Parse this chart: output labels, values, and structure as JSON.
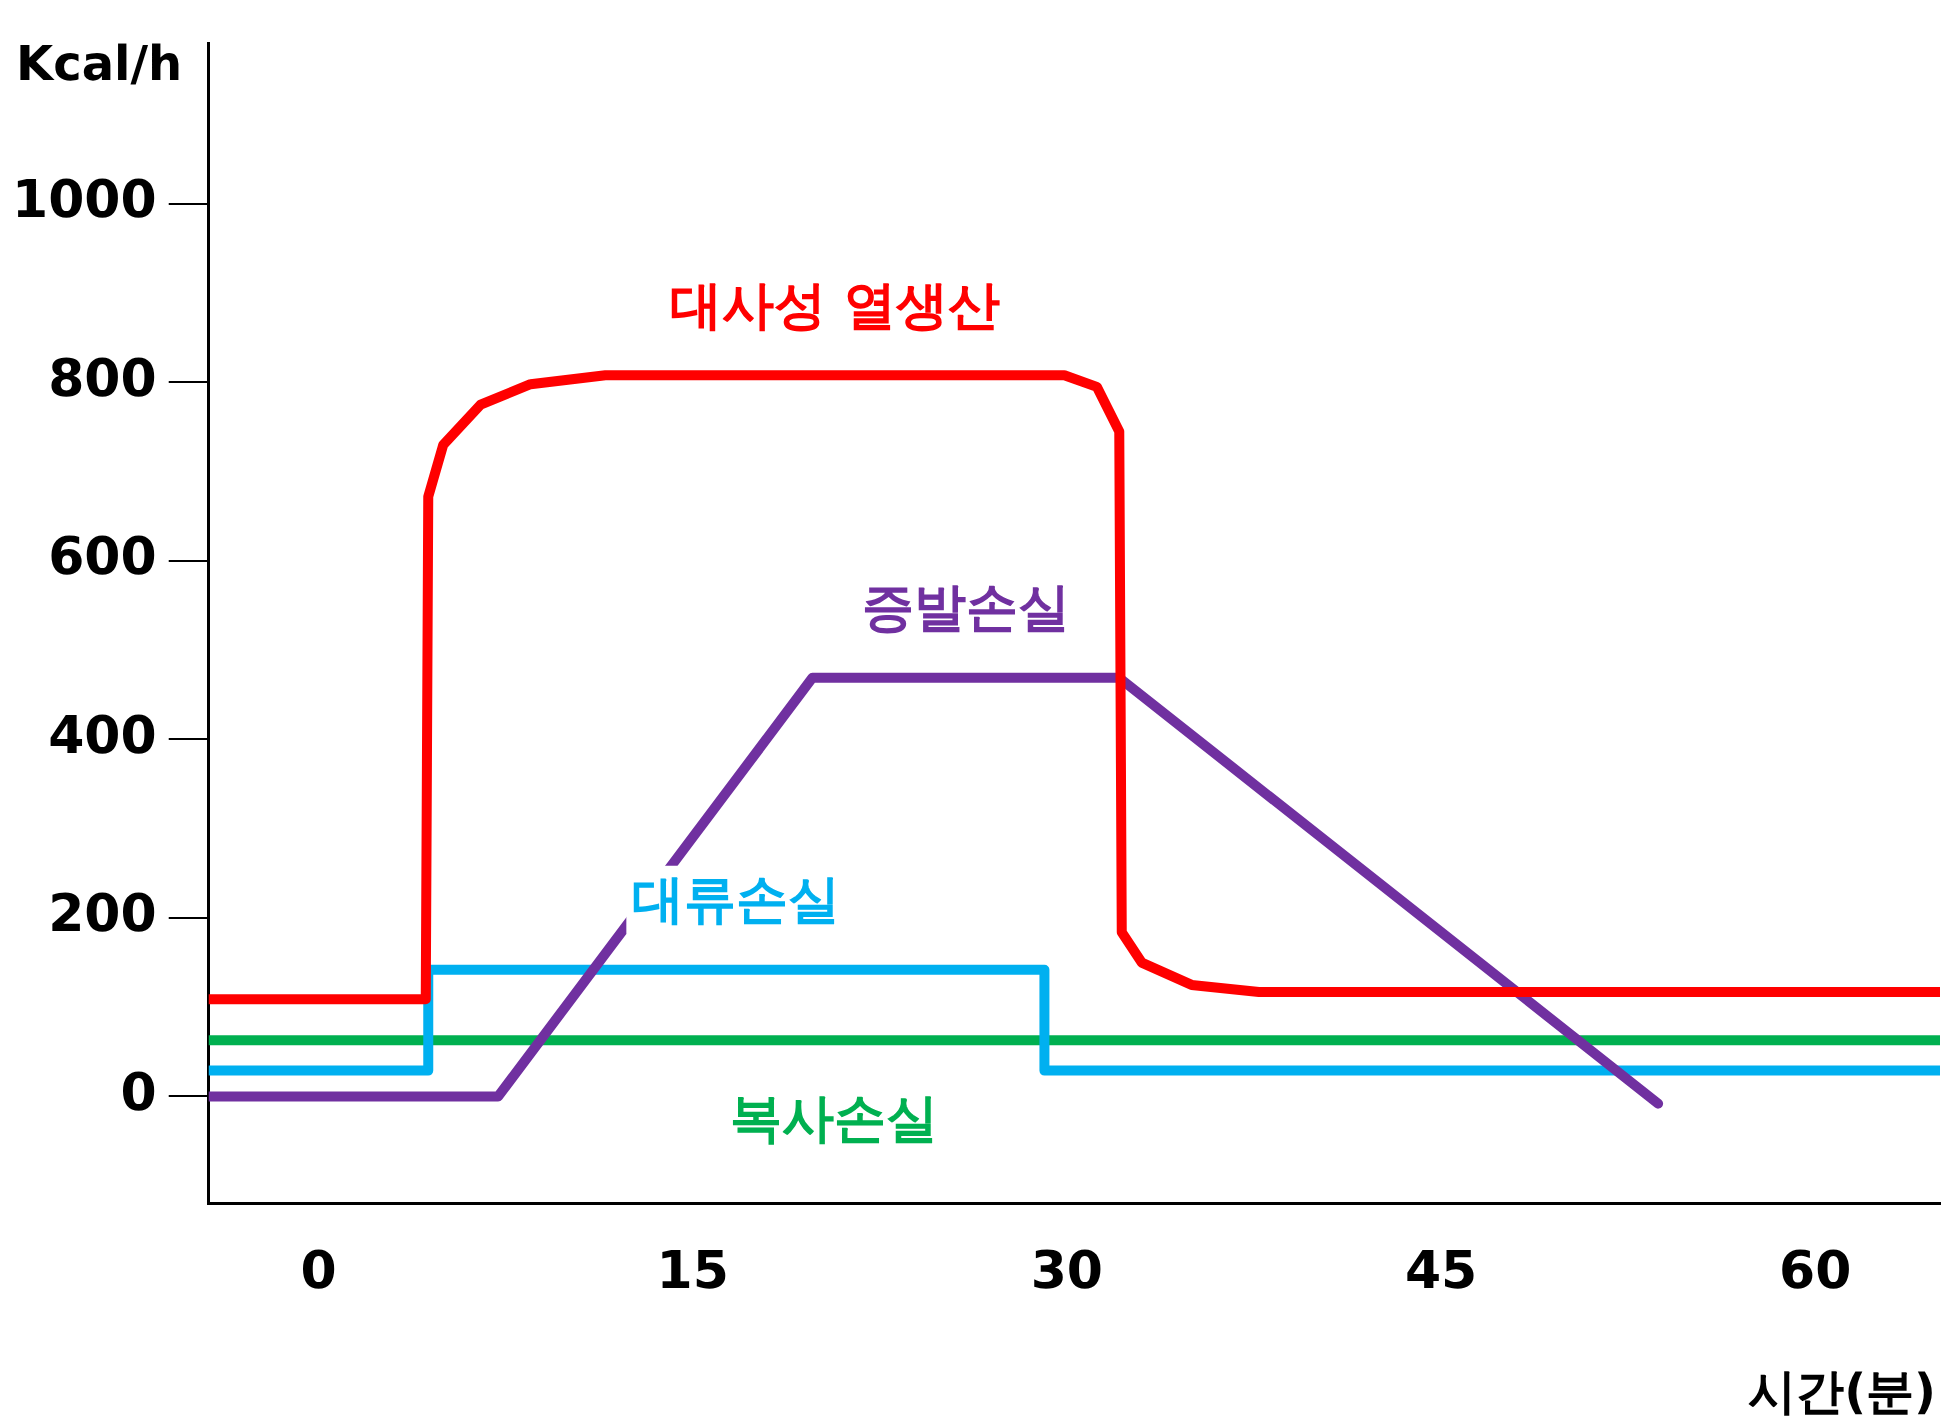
{
  "chart_data": {
    "type": "line",
    "xlabel": "시간(분)",
    "ylabel": "Kcal/h",
    "xlim": [
      -4.4,
      65
    ],
    "ylim": [
      -120,
      1180
    ],
    "xticks": [
      0,
      15,
      30,
      45,
      60
    ],
    "yticks": [
      0,
      200,
      400,
      600,
      800,
      1000
    ],
    "grid": false,
    "legend": false,
    "marker": "none",
    "line_style": "solid",
    "series": [
      {
        "name": "대사성 열생산",
        "color": "#ff0000",
        "x": [
          -4.4,
          4.3,
          4.4,
          5,
          6.5,
          8.5,
          11.5,
          29.9,
          31.2,
          32.1,
          32.2,
          33,
          35,
          37.7,
          65
        ],
        "values": [
          109,
          109,
          672,
          730,
          775,
          798,
          808,
          808,
          795,
          745,
          184,
          150,
          125,
          117,
          117
        ]
      },
      {
        "name": "증발손실",
        "color": "#7030a0",
        "x": [
          -4.4,
          7.2,
          19.8,
          32.1,
          53.7
        ],
        "values": [
          0,
          0,
          469,
          469,
          -8
        ]
      },
      {
        "name": "대류손실",
        "color": "#00b0f0",
        "x": [
          -4.4,
          4.4,
          4.4,
          29.1,
          29.1,
          65
        ],
        "values": [
          29,
          29,
          142,
          142,
          29,
          29
        ]
      },
      {
        "name": "복사손실",
        "color": "#00b050",
        "x": [
          -4.4,
          65
        ],
        "values": [
          63,
          63
        ]
      }
    ]
  }
}
